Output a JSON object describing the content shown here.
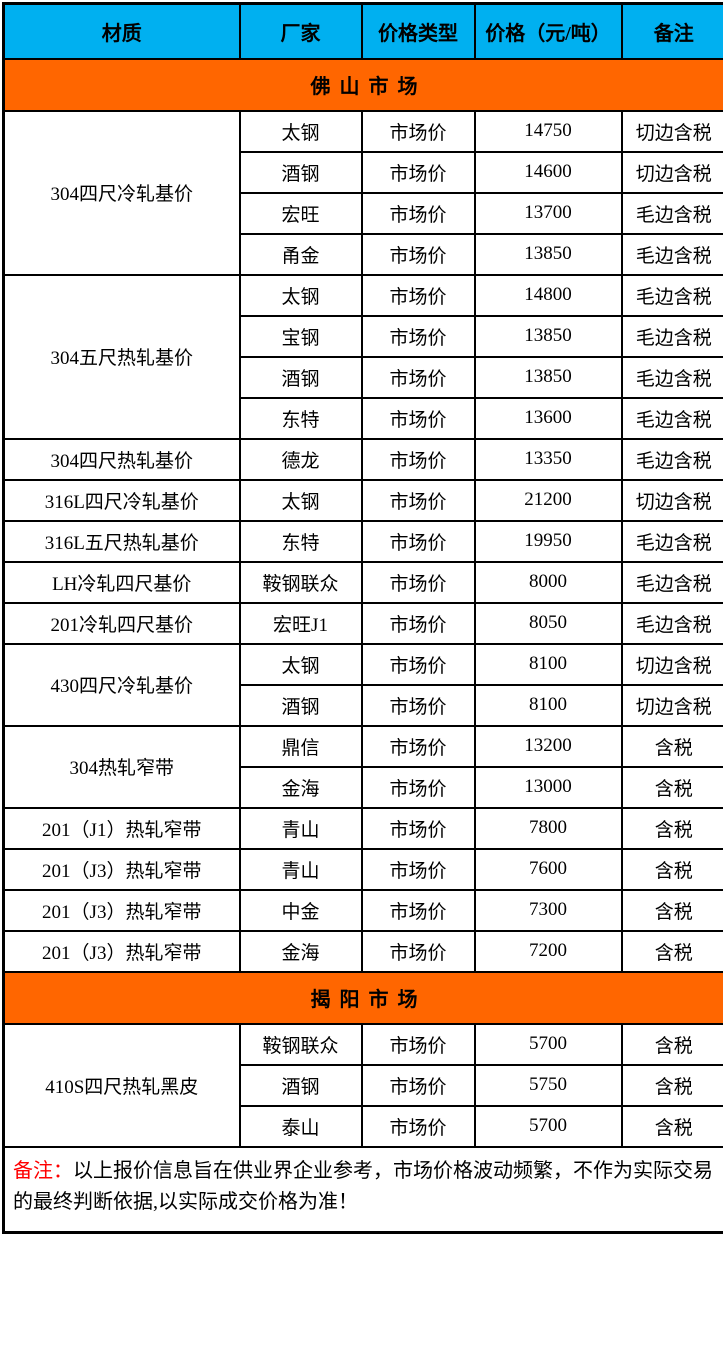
{
  "table": {
    "columns": [
      "材质",
      "厂家",
      "价格类型",
      "价格（元/吨）",
      "备注"
    ],
    "sections": [
      {
        "title": "佛 山 市 场",
        "groups": [
          {
            "material": "304四尺冷轧基价",
            "rows": [
              {
                "manufacturer": "太钢",
                "price_type": "市场价",
                "price": "14750",
                "remark": "切边含税"
              },
              {
                "manufacturer": "酒钢",
                "price_type": "市场价",
                "price": "14600",
                "remark": "切边含税"
              },
              {
                "manufacturer": "宏旺",
                "price_type": "市场价",
                "price": "13700",
                "remark": "毛边含税"
              },
              {
                "manufacturer": "甬金",
                "price_type": "市场价",
                "price": "13850",
                "remark": "毛边含税"
              }
            ]
          },
          {
            "material": "304五尺热轧基价",
            "rows": [
              {
                "manufacturer": "太钢",
                "price_type": "市场价",
                "price": "14800",
                "remark": "毛边含税"
              },
              {
                "manufacturer": "宝钢",
                "price_type": "市场价",
                "price": "13850",
                "remark": "毛边含税"
              },
              {
                "manufacturer": "酒钢",
                "price_type": "市场价",
                "price": "13850",
                "remark": "毛边含税"
              },
              {
                "manufacturer": "东特",
                "price_type": "市场价",
                "price": "13600",
                "remark": "毛边含税"
              }
            ]
          },
          {
            "material": "304四尺热轧基价",
            "rows": [
              {
                "manufacturer": "德龙",
                "price_type": "市场价",
                "price": "13350",
                "remark": "毛边含税"
              }
            ]
          },
          {
            "material": "316L四尺冷轧基价",
            "rows": [
              {
                "manufacturer": "太钢",
                "price_type": "市场价",
                "price": "21200",
                "remark": "切边含税"
              }
            ]
          },
          {
            "material": "316L五尺热轧基价",
            "rows": [
              {
                "manufacturer": "东特",
                "price_type": "市场价",
                "price": "19950",
                "remark": "毛边含税"
              }
            ]
          },
          {
            "material": "LH冷轧四尺基价",
            "rows": [
              {
                "manufacturer": "鞍钢联众",
                "price_type": "市场价",
                "price": "8000",
                "remark": "毛边含税"
              }
            ]
          },
          {
            "material": "201冷轧四尺基价",
            "rows": [
              {
                "manufacturer": "宏旺J1",
                "price_type": "市场价",
                "price": "8050",
                "remark": "毛边含税"
              }
            ]
          },
          {
            "material": "430四尺冷轧基价",
            "rows": [
              {
                "manufacturer": "太钢",
                "price_type": "市场价",
                "price": "8100",
                "remark": "切边含税"
              },
              {
                "manufacturer": "酒钢",
                "price_type": "市场价",
                "price": "8100",
                "remark": "切边含税"
              }
            ]
          },
          {
            "material": "304热轧窄带",
            "rows": [
              {
                "manufacturer": "鼎信",
                "price_type": "市场价",
                "price": "13200",
                "remark": "含税"
              },
              {
                "manufacturer": "金海",
                "price_type": "市场价",
                "price": "13000",
                "remark": "含税"
              }
            ]
          },
          {
            "material": "201（J1）热轧窄带",
            "rows": [
              {
                "manufacturer": "青山",
                "price_type": "市场价",
                "price": "7800",
                "remark": "含税"
              }
            ]
          },
          {
            "material": "201（J3）热轧窄带",
            "rows": [
              {
                "manufacturer": "青山",
                "price_type": "市场价",
                "price": "7600",
                "remark": "含税"
              }
            ]
          },
          {
            "material": "201（J3）热轧窄带",
            "rows": [
              {
                "manufacturer": "中金",
                "price_type": "市场价",
                "price": "7300",
                "remark": "含税"
              }
            ]
          },
          {
            "material": "201（J3）热轧窄带",
            "rows": [
              {
                "manufacturer": "金海",
                "price_type": "市场价",
                "price": "7200",
                "remark": "含税"
              }
            ]
          }
        ]
      },
      {
        "title": "揭 阳 市 场",
        "groups": [
          {
            "material": "410S四尺热轧黑皮",
            "rows": [
              {
                "manufacturer": "鞍钢联众",
                "price_type": "市场价",
                "price": "5700",
                "remark": "含税"
              },
              {
                "manufacturer": "酒钢",
                "price_type": "市场价",
                "price": "5750",
                "remark": "含税"
              },
              {
                "manufacturer": "泰山",
                "price_type": "市场价",
                "price": "5700",
                "remark": "含税"
              }
            ]
          }
        ]
      }
    ]
  },
  "footer": {
    "label": "备注：",
    "text": "以上报价信息旨在供业界企业参考，市场价格波动频繁，不作为实际交易的最终判断依据,以实际成交价格为准！"
  },
  "colors": {
    "header_bg": "#00B0F0",
    "section_bg": "#FF6600",
    "note_label": "#FF0000",
    "border": "#000000"
  }
}
